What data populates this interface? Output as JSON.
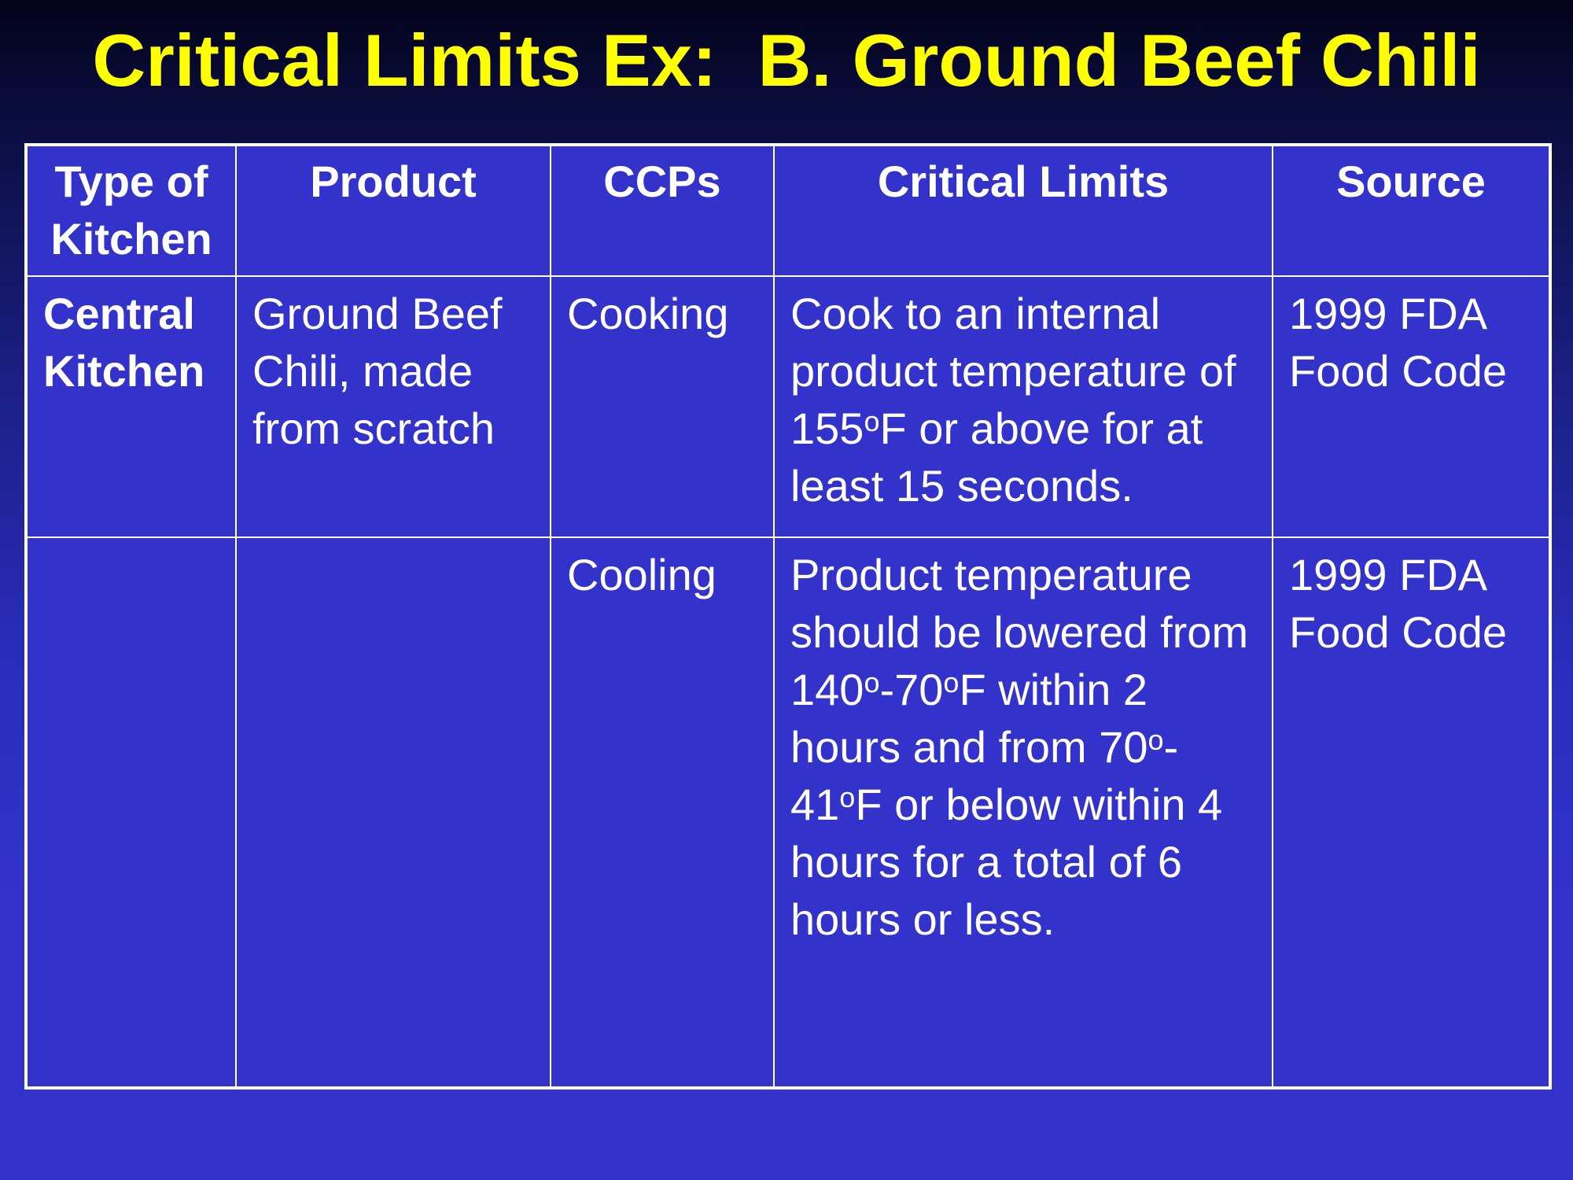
{
  "title": "Critical Limits Ex:  B. Ground Beef Chili",
  "table": {
    "headers": [
      "Type of Kitchen",
      "Product",
      "CCPs",
      "Critical Limits",
      "Source"
    ],
    "rows": [
      {
        "type_of_kitchen": "Central Kitchen",
        "product": "Ground Beef Chili, made from scratch",
        "ccp": "Cooking",
        "critical_limits": "Cook to an internal product temperature of 155oF or above for at least 15 seconds.",
        "source": "1999 FDA Food Code"
      },
      {
        "type_of_kitchen": "",
        "product": "",
        "ccp": "Cooling",
        "critical_limits": "Product temperature should be lowered from 140o-70oF within 2 hours and from 70o-41oF or below within 4 hours for a total of 6 hours or less.",
        "source": "1999 FDA Food Code"
      }
    ]
  },
  "colors": {
    "title": "#ffff00",
    "table_fill": "#3333cc",
    "grid": "#ffffff",
    "text": "#ffffff"
  }
}
